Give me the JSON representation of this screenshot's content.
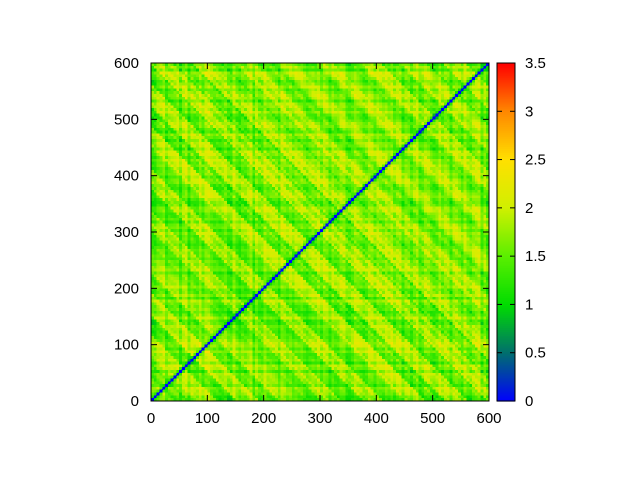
{
  "chart_data": {
    "type": "heatmap",
    "title": "",
    "xlabel": "",
    "ylabel": "",
    "xlim": [
      0,
      600
    ],
    "ylim": [
      0,
      600
    ],
    "x_ticks": [
      "0",
      "100",
      "200",
      "300",
      "400",
      "500",
      "600"
    ],
    "y_ticks": [
      "0",
      "100",
      "200",
      "300",
      "400",
      "500",
      "600"
    ],
    "colorbar": {
      "range": [
        0,
        3.5
      ],
      "ticks": [
        "0",
        "0.5",
        "1",
        "1.5",
        "2",
        "2.5",
        "3",
        "3.5"
      ],
      "stops": [
        {
          "value": 0.0,
          "color": "#0000ff"
        },
        {
          "value": 0.5,
          "color": "#006e6e"
        },
        {
          "value": 1.0,
          "color": "#00dc00"
        },
        {
          "value": 1.5,
          "color": "#5aef00"
        },
        {
          "value": 2.0,
          "color": "#cff000"
        },
        {
          "value": 2.5,
          "color": "#ffe000"
        },
        {
          "value": 3.0,
          "color": "#ff8800"
        },
        {
          "value": 3.5,
          "color": "#ff0000"
        }
      ]
    },
    "matrix_size": 600,
    "diagonal_value": 0,
    "typical_off_diagonal_range": [
      0.8,
      2.1
    ],
    "symmetric": true,
    "grid": false
  }
}
